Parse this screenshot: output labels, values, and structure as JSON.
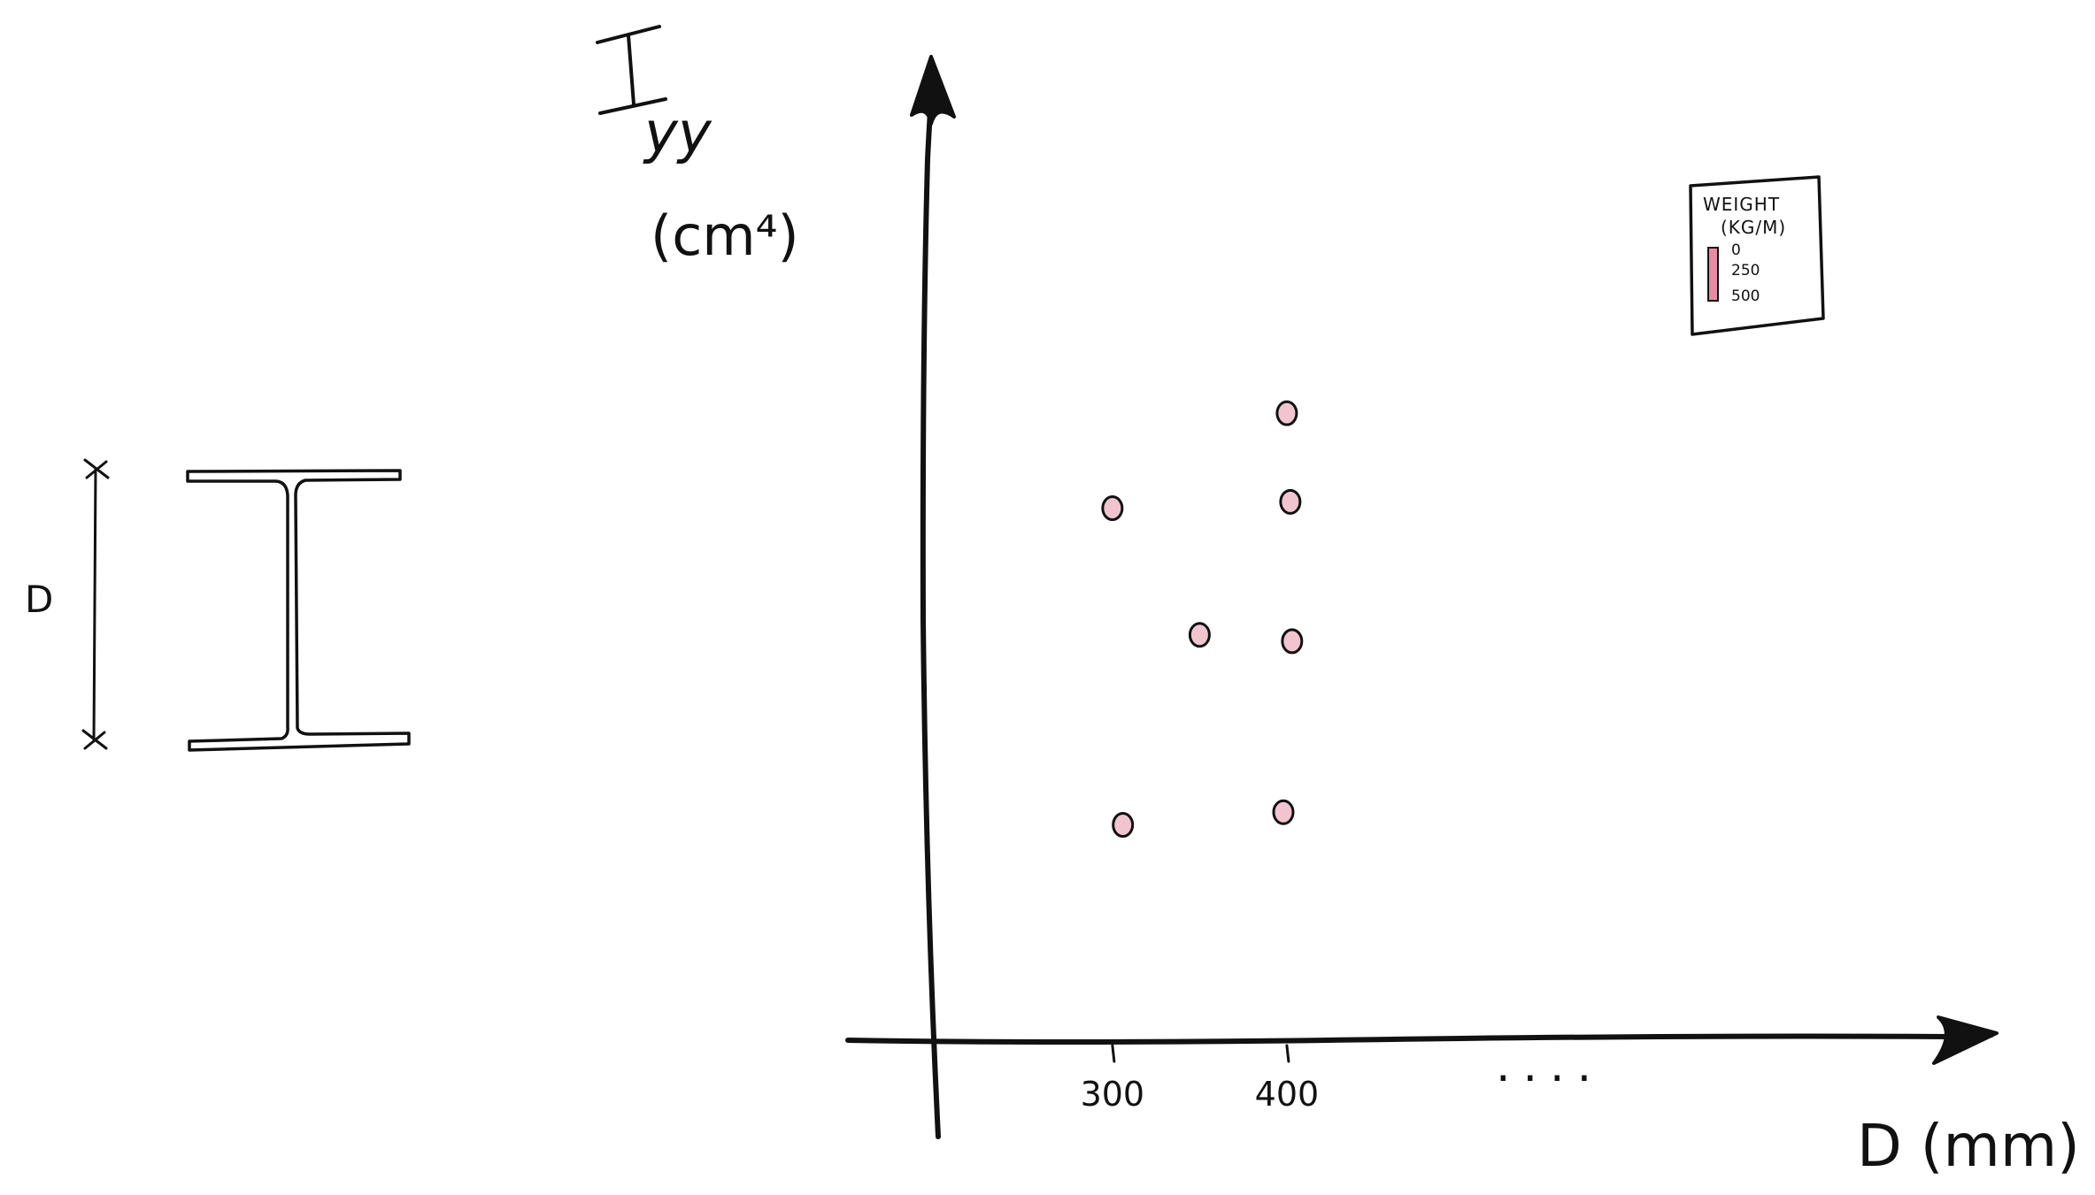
{
  "figure": {
    "beam_dimension_label": "D",
    "ellipsis": "...."
  },
  "chart_data": {
    "type": "scatter",
    "title": "",
    "xlabel": "D (mm)",
    "ylabel": "Iyy",
    "ylabel_sub": "yy",
    "ylabel_unit": "(cm⁴)",
    "xticks": [
      {
        "value": 300,
        "label": "300"
      },
      {
        "value": 400,
        "label": "400"
      }
    ],
    "xlim": [
      193,
      805
    ],
    "ylim": [
      0,
      100
    ],
    "yticks": [],
    "grid": false,
    "points": [
      {
        "x": 300,
        "y": 84
      },
      {
        "x": 306,
        "y": 34
      },
      {
        "x": 350,
        "y": 64
      },
      {
        "x": 400,
        "y": 99
      },
      {
        "x": 402,
        "y": 85
      },
      {
        "x": 403,
        "y": 63
      },
      {
        "x": 398,
        "y": 36
      }
    ],
    "marker_color": "#f2c4cf",
    "legend": {
      "title": "WEIGHT",
      "unit": "(KG/M)",
      "scale_labels": [
        "0",
        "250",
        "500"
      ],
      "bar_color": "#e48ca3",
      "position": "top-right"
    }
  }
}
